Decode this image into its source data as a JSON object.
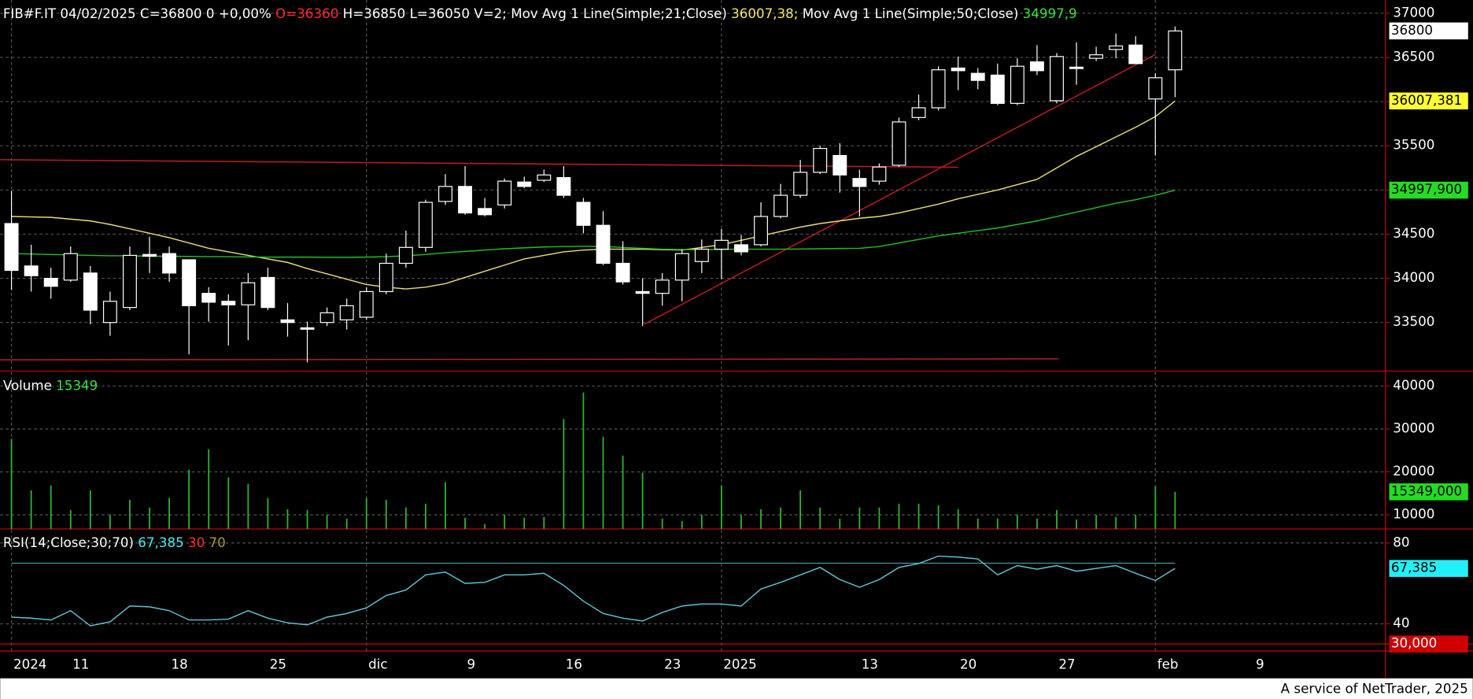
{
  "chart_data": [
    {
      "type": "candlestick",
      "header": [
        {
          "text": "FIB#F.IT 04/02/2025 C=36800 0 +0,00% ",
          "color": "#ffffff"
        },
        {
          "text": "O=36360",
          "color": "#ff2a2a"
        },
        {
          "text": " H=36850 L=36050 V=2; Mov Avg 1 Line(Simple;21;Close) ",
          "color": "#ffffff"
        },
        {
          "text": "36007,38; ",
          "color": "#f2e56a"
        },
        {
          "text": "Mov Avg 1 Line(Simple;50;Close) ",
          "color": "#ffffff"
        },
        {
          "text": "34997,9",
          "color": "#3be03b"
        }
      ],
      "categories": [
        "2024",
        null,
        null,
        "11",
        null,
        null,
        null,
        null,
        "18",
        null,
        null,
        null,
        null,
        "25",
        null,
        null,
        null,
        null,
        "dic",
        null,
        null,
        null,
        null,
        "9",
        null,
        null,
        null,
        null,
        "16",
        null,
        null,
        null,
        null,
        "23",
        null,
        null,
        "2025",
        null,
        null,
        null,
        null,
        null,
        null,
        "13",
        null,
        null,
        null,
        null,
        "20",
        null,
        null,
        null,
        null,
        "27",
        null,
        null,
        null,
        null,
        "feb",
        null,
        null,
        null,
        null,
        "9"
      ],
      "open": [
        34620,
        34140,
        34000,
        33980,
        34060,
        33500,
        33670,
        34270,
        34280,
        34210,
        33830,
        33740,
        33700,
        34010,
        33530,
        33440,
        33500,
        33530,
        33560,
        33850,
        34170,
        34350,
        34870,
        35040,
        34790,
        34830,
        35090,
        35110,
        35140,
        34860,
        34600,
        34170,
        33850,
        33830,
        33980,
        34190,
        34330,
        34380,
        34380,
        34700,
        34940,
        35200,
        35390,
        35130,
        35100,
        35280,
        35820,
        35930,
        36380,
        36320,
        36300,
        35980,
        36450,
        36010,
        36390,
        36490,
        36590,
        36640,
        36030,
        36360,
        null,
        null,
        null,
        null
      ],
      "high": [
        34990,
        34380,
        34120,
        34360,
        34140,
        33850,
        34360,
        34470,
        34360,
        34210,
        33900,
        33820,
        34060,
        34120,
        33720,
        33510,
        33670,
        33770,
        33900,
        34280,
        34540,
        34890,
        35180,
        35270,
        34910,
        35130,
        35150,
        35230,
        35270,
        34910,
        34760,
        34420,
        34000,
        34060,
        34330,
        34440,
        34560,
        34490,
        34860,
        35070,
        35340,
        35500,
        35530,
        35230,
        35300,
        35820,
        36080,
        36400,
        36510,
        36380,
        36430,
        36490,
        36640,
        36550,
        36670,
        36620,
        36770,
        36740,
        36320,
        36850,
        null,
        null,
        null,
        null
      ],
      "low": [
        33870,
        33850,
        33770,
        33960,
        33480,
        33350,
        33640,
        34060,
        33960,
        33140,
        33510,
        33240,
        33300,
        33640,
        33340,
        33050,
        33460,
        33420,
        33530,
        33820,
        34120,
        34300,
        34830,
        34720,
        34700,
        34790,
        35020,
        35090,
        34910,
        34510,
        34150,
        33930,
        33460,
        33690,
        33740,
        34060,
        33990,
        34260,
        34360,
        34680,
        34910,
        35180,
        34970,
        34700,
        35060,
        35260,
        35790,
        35900,
        36130,
        36140,
        35960,
        35960,
        36300,
        35980,
        36190,
        36460,
        36490,
        36430,
        35390,
        36050,
        null,
        null,
        null,
        null
      ],
      "close": [
        34090,
        34030,
        33910,
        34280,
        33640,
        33740,
        34260,
        34250,
        34060,
        33690,
        33730,
        33700,
        33950,
        33670,
        33500,
        33430,
        33610,
        33690,
        33850,
        34170,
        34350,
        34860,
        35040,
        34740,
        34720,
        35100,
        35040,
        35170,
        34940,
        34600,
        34170,
        33960,
        33830,
        33980,
        34280,
        34330,
        34430,
        34300,
        34700,
        34940,
        35200,
        35470,
        35170,
        35040,
        35260,
        35770,
        35930,
        36360,
        36350,
        36240,
        35980,
        36400,
        36350,
        36510,
        36380,
        36530,
        36630,
        36430,
        36270,
        36800,
        null,
        null,
        null,
        null
      ],
      "close_label": "36800",
      "series": [
        {
          "color": "#e8df72",
          "last_label": "36007,381",
          "values": [
            34700,
            34695,
            34690,
            34670,
            34650,
            34610,
            34560,
            34510,
            34460,
            34400,
            34340,
            34300,
            34260,
            34220,
            34180,
            34110,
            34050,
            33990,
            33930,
            33900,
            33880,
            33900,
            33940,
            34010,
            34080,
            34150,
            34220,
            34260,
            34300,
            34320,
            34330,
            34330,
            34330,
            34325,
            34320,
            34350,
            34380,
            34430,
            34480,
            34530,
            34580,
            34620,
            34650,
            34680,
            34700,
            34740,
            34790,
            34840,
            34900,
            34950,
            35000,
            35060,
            35120,
            35250,
            35380,
            35490,
            35600,
            35710,
            35830,
            36007.381,
            null,
            null,
            null,
            null
          ]
        },
        {
          "color": "#22c022",
          "last_label": "34997,900",
          "values": [
            34280,
            34275,
            34270,
            34265,
            34260,
            34255,
            34255,
            34250,
            34250,
            34248,
            34245,
            34245,
            34242,
            34240,
            34240,
            34240,
            34238,
            34238,
            34240,
            34245,
            34255,
            34270,
            34290,
            34305,
            34320,
            34335,
            34345,
            34355,
            34360,
            34362,
            34360,
            34350,
            34340,
            34330,
            34325,
            34325,
            34328,
            34330,
            34330,
            34330,
            34332,
            34335,
            34338,
            34340,
            34360,
            34400,
            34440,
            34480,
            34510,
            34540,
            34570,
            34610,
            34650,
            34700,
            34750,
            34800,
            34850,
            34890,
            34940,
            34997.9,
            null,
            null,
            null,
            null
          ]
        }
      ],
      "ylim": [
        32950,
        37150
      ],
      "yticks": [
        33500,
        34000,
        34500,
        35000,
        35500,
        36000,
        36500,
        37000
      ],
      "grid": true
    },
    {
      "type": "volume",
      "header": [
        {
          "text": "Volume ",
          "color": "#ffffff"
        },
        {
          "text": "15349",
          "color": "#3be03b"
        }
      ],
      "color": "#2fb52f",
      "last_label": "15349,000",
      "values": [
        27700,
        15700,
        16800,
        11100,
        15700,
        10000,
        13500,
        11700,
        13900,
        20500,
        25300,
        18700,
        17200,
        13900,
        11300,
        11100,
        10000,
        9100,
        13900,
        13500,
        11700,
        12600,
        17600,
        9300,
        7800,
        10000,
        9300,
        9500,
        32300,
        38500,
        28200,
        23800,
        19800,
        9100,
        8500,
        10000,
        16800,
        10000,
        11300,
        11700,
        15700,
        11700,
        9100,
        11700,
        11700,
        12600,
        12600,
        12200,
        11300,
        9100,
        9100,
        10000,
        9100,
        11100,
        8900,
        10000,
        9500,
        10000,
        16600,
        15349,
        null,
        null,
        null,
        null
      ],
      "ylim": [
        6700,
        43050
      ],
      "yticks": [
        10000,
        20000,
        30000,
        40000
      ],
      "grid": true
    },
    {
      "type": "rsi",
      "header": [
        {
          "text": "RSI(14;Close;30;70) ",
          "color": "#ffffff"
        },
        {
          "text": "67,385 ",
          "color": "#4fe6f0"
        },
        {
          "text": "30 ",
          "color": "#ff2a2a"
        },
        {
          "text": "70",
          "color": "#a89a3a"
        }
      ],
      "color": "#5ec4d6",
      "last_label": "67,385",
      "values": [
        43.3,
        42.8,
        41.9,
        46.5,
        39,
        41,
        48.8,
        48.4,
        46.5,
        41.9,
        41.9,
        42.3,
        46.5,
        42.8,
        40.5,
        39.5,
        43.3,
        45.1,
        47.9,
        54,
        56.7,
        64.2,
        65.6,
        60,
        60.5,
        64.2,
        64.2,
        65,
        59,
        51.2,
        45.1,
        42.8,
        41.4,
        45.6,
        48.8,
        49.8,
        49.8,
        48.8,
        57.2,
        60.5,
        64.2,
        67.9,
        61.9,
        58.1,
        61.9,
        67.9,
        69.8,
        73.5,
        73,
        72.1,
        64.2,
        68.8,
        67,
        68.8,
        66,
        67.4,
        68.8,
        65,
        61.4,
        67.385,
        null,
        null,
        null,
        null
      ],
      "levels": [
        {
          "value": 70,
          "color": "#4a9fa8"
        },
        {
          "value": 30,
          "color": "#d00000",
          "label": "30,000"
        }
      ],
      "ylim": [
        26.5,
        86
      ],
      "yticks": [
        40,
        80
      ],
      "grid": true
    }
  ],
  "footer": "A service of NetTrader, 2025"
}
